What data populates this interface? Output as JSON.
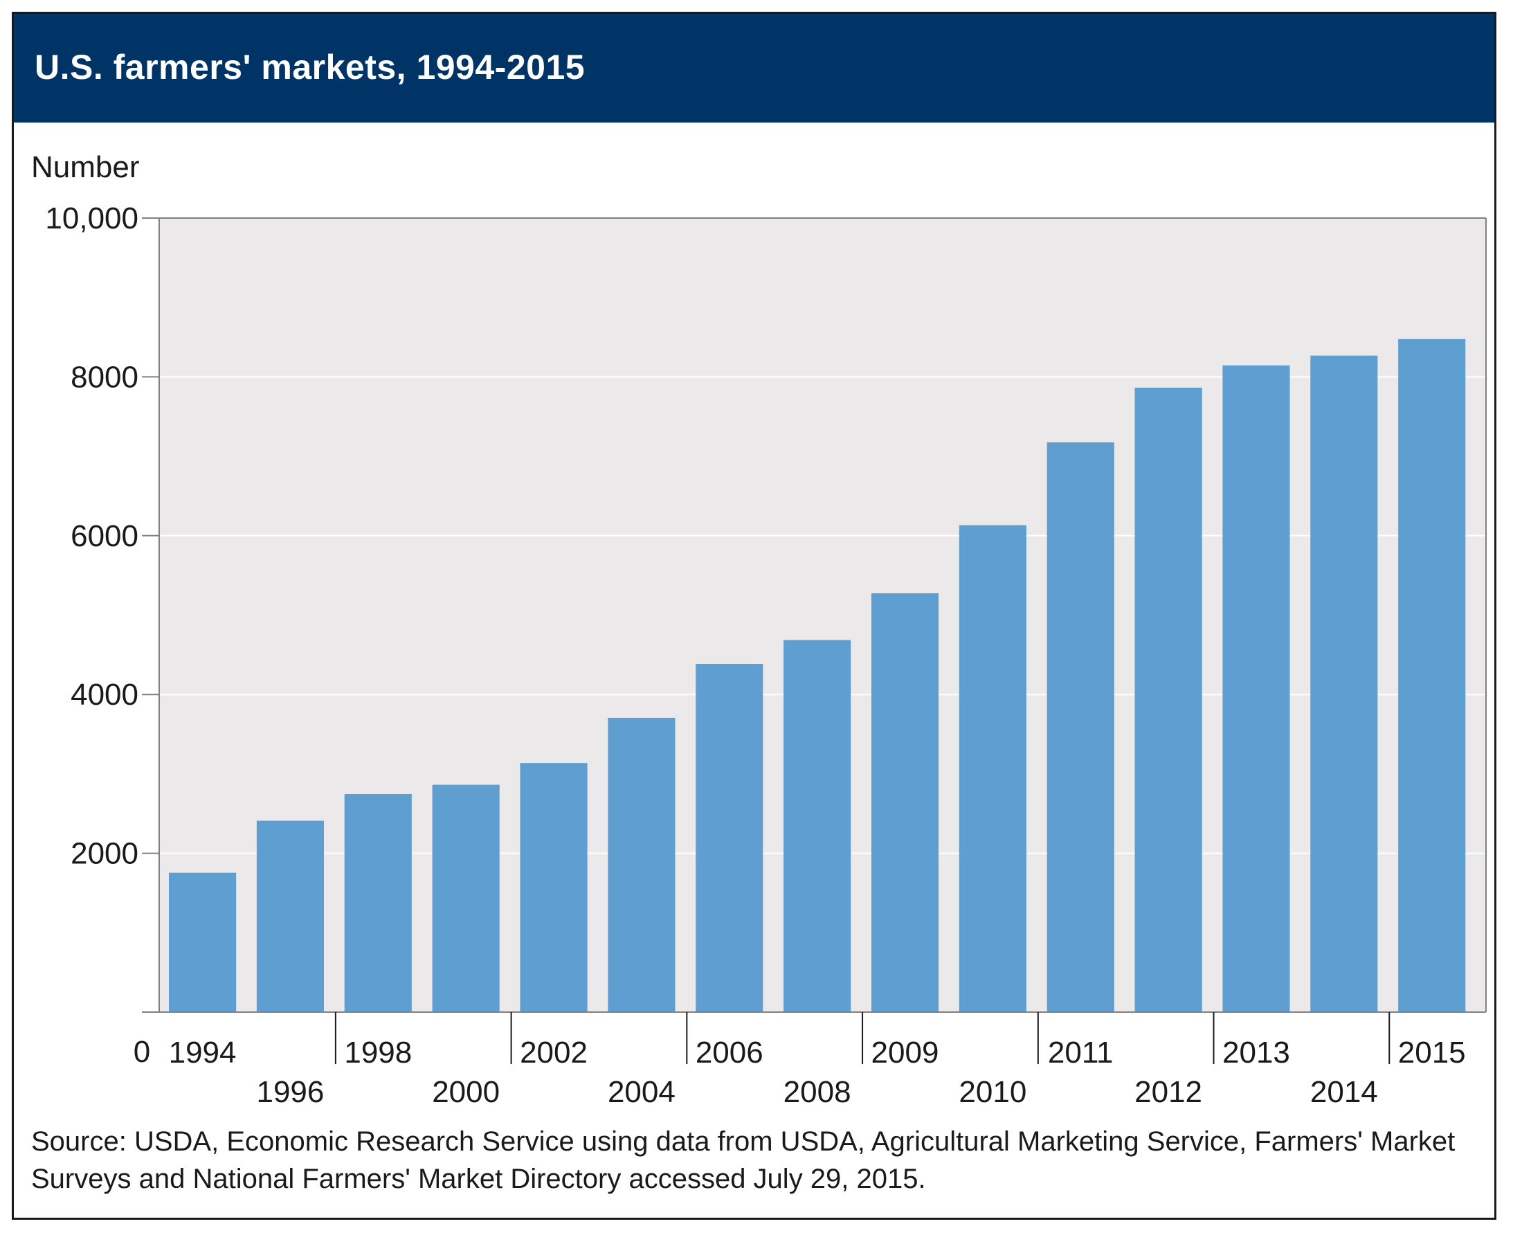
{
  "chart_data": {
    "type": "bar",
    "title": "U.S. farmers' markets, 1994-2015",
    "ylabel": "Number",
    "xlabel": "",
    "ylim": [
      0,
      10000
    ],
    "yticks": [
      {
        "value": 10000,
        "label": "10,000"
      },
      {
        "value": 8000,
        "label": "8000"
      },
      {
        "value": 6000,
        "label": "6000"
      },
      {
        "value": 4000,
        "label": "4000"
      },
      {
        "value": 2000,
        "label": "2000"
      },
      {
        "value": 0,
        "label": "0"
      }
    ],
    "categories": [
      "1994",
      "1996",
      "1998",
      "2000",
      "2002",
      "2004",
      "2006",
      "2008",
      "2009",
      "2010",
      "2011",
      "2012",
      "2013",
      "2014",
      "2015"
    ],
    "values": [
      1755,
      2410,
      2746,
      2863,
      3137,
      3706,
      4385,
      4685,
      5274,
      6132,
      7175,
      7864,
      8144,
      8268,
      8476
    ],
    "grid": true,
    "bar_color": "#5e9ed1",
    "plot_background": "#ebe9e9",
    "header_color": "#003366",
    "source": "Source: USDA, Economic Research Service using data from USDA, Agricultural Marketing Service, Farmers' Market Surveys and National Farmers' Market Directory accessed July 29, 2015."
  }
}
